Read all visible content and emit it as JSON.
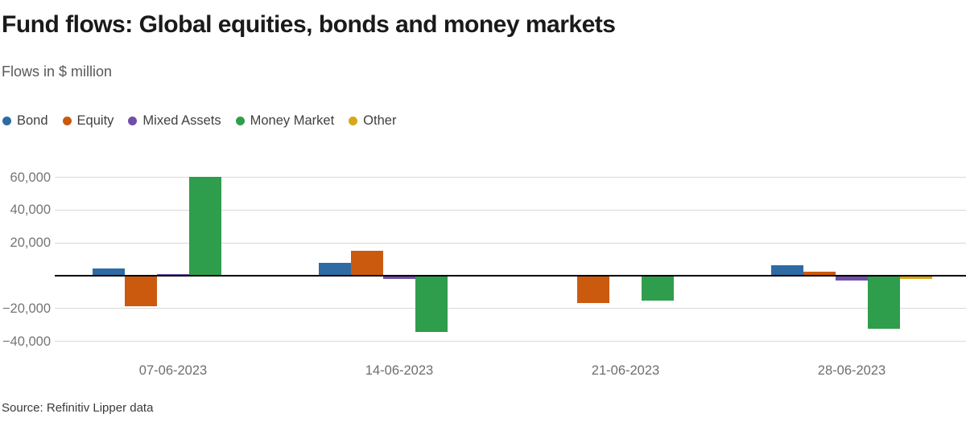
{
  "header": {
    "title": "Fund flows: Global equities, bonds and money markets",
    "subtitle": "Flows in $ million"
  },
  "chart_data": {
    "type": "bar",
    "title": "Fund flows: Global equities, bonds and money markets",
    "subtitle": "Flows in $ million",
    "unit": "$ million",
    "categories": [
      "07-06-2023",
      "14-06-2023",
      "21-06-2023",
      "28-06-2023"
    ],
    "series": [
      {
        "name": "Bond",
        "color": "#2e6ba4",
        "values": [
          4400,
          7700,
          700,
          6500
        ]
      },
      {
        "name": "Equity",
        "color": "#cb5a0f",
        "values": [
          -18700,
          15400,
          -16800,
          2300
        ]
      },
      {
        "name": "Mixed Assets",
        "color": "#6f4fa8",
        "values": [
          900,
          -1800,
          -500,
          -2700
        ]
      },
      {
        "name": "Money Market",
        "color": "#2f9e4c",
        "values": [
          60300,
          -34300,
          -15400,
          -32300
        ]
      },
      {
        "name": "Other",
        "color": "#d5a817",
        "values": [
          0,
          0,
          0,
          -1800
        ]
      }
    ],
    "ylim": [
      -40000,
      60000
    ],
    "y_ticks": [
      {
        "value": 60000,
        "label": "60,000"
      },
      {
        "value": 40000,
        "label": "40,000"
      },
      {
        "value": 20000,
        "label": "20,000"
      },
      {
        "value": -20000,
        "label": "−20,000"
      },
      {
        "value": -40000,
        "label": "−40,000"
      }
    ],
    "grid": true,
    "legend_position": "top-left",
    "xlabel": "",
    "ylabel": ""
  },
  "footer": {
    "source": "Source: Refinitiv Lipper data"
  }
}
